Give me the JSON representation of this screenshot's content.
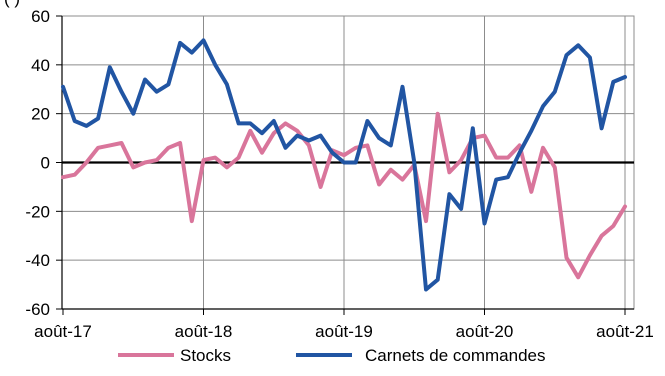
{
  "header_fragment": "(           )",
  "chart_data": {
    "type": "line",
    "title": "",
    "xlabel": "",
    "ylabel": "",
    "ylim": [
      -60,
      60
    ],
    "yticks": [
      -60,
      -40,
      -20,
      0,
      20,
      40,
      60
    ],
    "grid": true,
    "legend_position": "bottom",
    "x_tick_labels": [
      "août-17",
      "août-18",
      "août-19",
      "août-20",
      "août-21"
    ],
    "x_start": "2017-08",
    "series": [
      {
        "name": "Stocks",
        "color": "#d9759b",
        "values": [
          -6,
          -5,
          0,
          6,
          7,
          8,
          -2,
          0,
          1,
          6,
          8,
          -24,
          1,
          2,
          -2,
          2,
          13,
          4,
          12,
          16,
          13,
          7,
          -10,
          5,
          3,
          6,
          7,
          -9,
          -3,
          -7,
          -1,
          -24,
          20,
          -4,
          1,
          10,
          11,
          2,
          2,
          7,
          -12,
          6,
          -2,
          -39,
          -47,
          -38,
          -30,
          -26,
          -18
        ]
      },
      {
        "name": "Carnets de commandes",
        "color": "#2155a3",
        "values": [
          31,
          17,
          15,
          18,
          39,
          29,
          20,
          34,
          29,
          32,
          49,
          45,
          50,
          40,
          32,
          16,
          16,
          12,
          17,
          6,
          11,
          9,
          11,
          4,
          0,
          0,
          17,
          10,
          7,
          31,
          0,
          -52,
          -48,
          -13,
          -19,
          14,
          -25,
          -7,
          -6,
          4,
          13,
          23,
          29,
          44,
          48,
          43,
          14,
          33,
          35
        ]
      }
    ]
  }
}
